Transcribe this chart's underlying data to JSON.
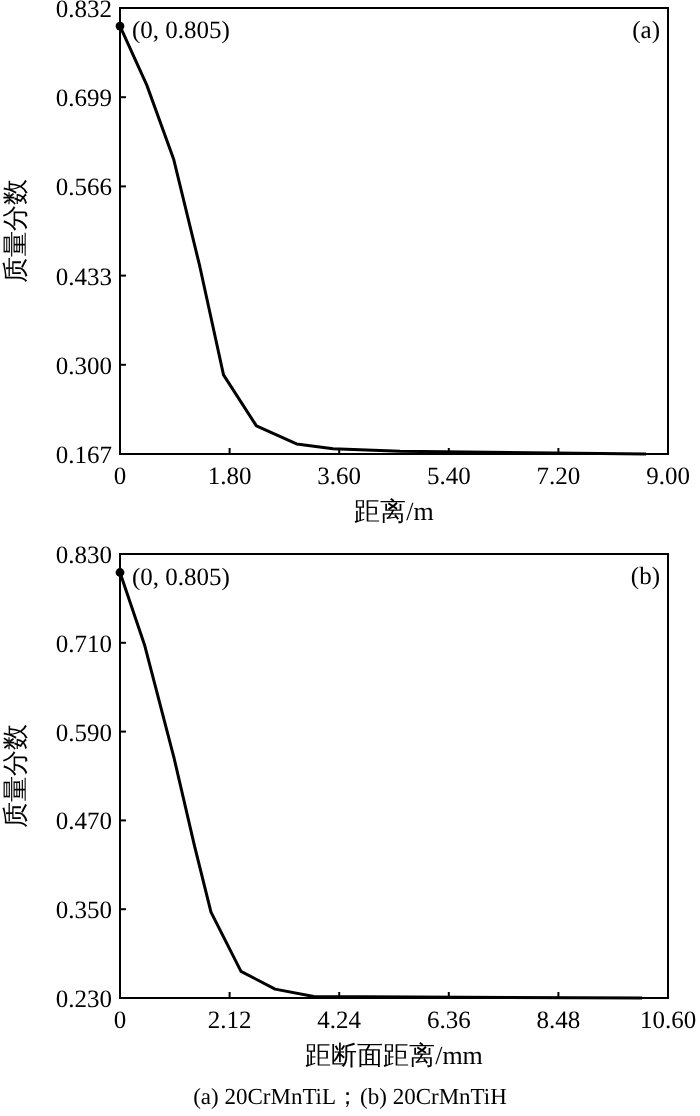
{
  "chart_data": [
    {
      "type": "line",
      "xlabel": "距离/m",
      "ylabel": "质量分数",
      "xlim": [
        0,
        9
      ],
      "ylim": [
        0.167,
        0.832
      ],
      "xticks": [
        {
          "value": 0,
          "label": "0"
        },
        {
          "value": 1.8,
          "label": "1.80"
        },
        {
          "value": 3.6,
          "label": "3.60"
        },
        {
          "value": 5.4,
          "label": "5.40"
        },
        {
          "value": 7.2,
          "label": "7.20"
        },
        {
          "value": 9,
          "label": "9.00"
        }
      ],
      "yticks": [
        0.167,
        {
          "value": 0.3,
          "label": "0.300"
        },
        0.433,
        0.566,
        0.699,
        0.832
      ],
      "annotations": [
        "(a)",
        {
          "text": "(0, 0.805)",
          "x": 0,
          "y": 0.805
        }
      ],
      "series": [
        {
          "color": "#000000",
          "x": [
            0,
            0.44,
            0.88,
            1.31,
            1.7,
            2.24,
            2.9,
            3.5,
            4.6,
            8.64
          ],
          "values": [
            0.805,
            0.717,
            0.607,
            0.447,
            0.285,
            0.209,
            0.182,
            0.175,
            0.171,
            0.167
          ]
        }
      ]
    },
    {
      "type": "line",
      "xlabel": "距断面距离/mm",
      "ylabel": "质量分数",
      "xlim": [
        0,
        10.6
      ],
      "ylim": [
        0.23,
        0.83
      ],
      "xticks": [
        {
          "value": 0,
          "label": "0"
        },
        2.12,
        4.24,
        6.36,
        8.48,
        {
          "value": 10.6,
          "label": "10.60"
        }
      ],
      "yticks": [
        {
          "value": 0.23,
          "label": "0.230"
        },
        {
          "value": 0.35,
          "label": "0.350"
        },
        {
          "value": 0.47,
          "label": "0.470"
        },
        {
          "value": 0.59,
          "label": "0.590"
        },
        {
          "value": 0.71,
          "label": "0.710"
        },
        {
          "value": 0.83,
          "label": "0.830"
        }
      ],
      "annotations": [
        "(b)",
        {
          "text": "(0, 0.805)",
          "x": 0,
          "y": 0.805
        },
        "(a) 20CrMnTiL；(b) 20CrMnTiH"
      ],
      "series": [
        {
          "color": "#000000",
          "x": [
            0,
            0.48,
            1.05,
            1.44,
            1.76,
            2.34,
            3.0,
            3.75,
            10.1
          ],
          "values": [
            0.805,
            0.706,
            0.553,
            0.436,
            0.346,
            0.266,
            0.242,
            0.232,
            0.23
          ]
        }
      ]
    }
  ]
}
